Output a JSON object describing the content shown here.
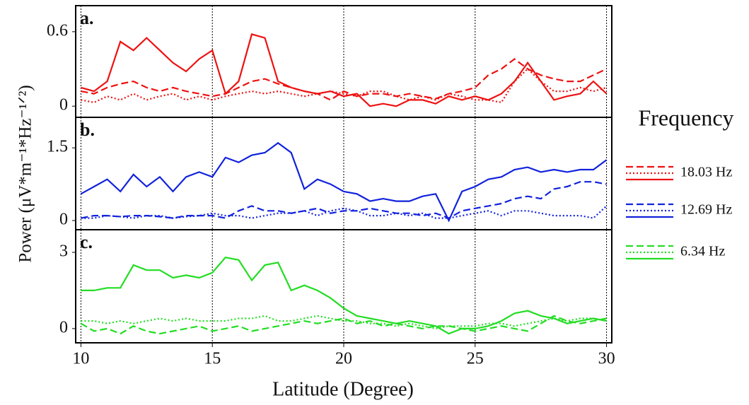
{
  "shared": {
    "ylabel": "Power (μV*m⁻¹*Hz⁻¹ᐟ²)",
    "xlabel": "Latitude (Degree)",
    "legend_title": "Frequency"
  },
  "chart_data": [
    {
      "type": "line",
      "panel_label": "a.",
      "legend_label": "18.03 Hz",
      "x": [
        10,
        10.5,
        11,
        11.5,
        12,
        12.5,
        13,
        13.5,
        14,
        14.5,
        15,
        15.5,
        16,
        16.5,
        17,
        17.5,
        18,
        18.5,
        19,
        19.5,
        20,
        20.5,
        21,
        21.5,
        22,
        22.5,
        23,
        23.5,
        24,
        24.5,
        25,
        25.5,
        26,
        26.5,
        27,
        27.5,
        28,
        28.5,
        29,
        29.5,
        30
      ],
      "xlim": [
        9.8,
        30.2
      ],
      "xticks": [
        10,
        15,
        20,
        25,
        30
      ],
      "ylim": [
        -0.09,
        0.81
      ],
      "yticks": [
        0,
        0.6
      ],
      "series": [
        {
          "dash": "dashed",
          "color": "#ee1111",
          "values": [
            0.12,
            0.1,
            0.15,
            0.18,
            0.2,
            0.15,
            0.12,
            0.15,
            0.12,
            0.1,
            0.08,
            0.1,
            0.15,
            0.2,
            0.22,
            0.18,
            0.15,
            0.12,
            0.1,
            0.05,
            0.12,
            0.08,
            0.1,
            0.1,
            0.08,
            0.1,
            0.08,
            0.06,
            0.1,
            0.12,
            0.15,
            0.25,
            0.3,
            0.38,
            0.3,
            0.25,
            0.22,
            0.2,
            0.2,
            0.25,
            0.3
          ]
        },
        {
          "dash": "dotted",
          "color": "#ee1111",
          "values": [
            0.05,
            0.03,
            0.08,
            0.05,
            0.1,
            0.05,
            0.08,
            0.1,
            0.05,
            0.08,
            0.05,
            0.08,
            0.1,
            0.12,
            0.1,
            0.12,
            0.1,
            0.08,
            0.1,
            0.12,
            0.1,
            0.08,
            0.12,
            0.12,
            0.08,
            0.05,
            0.08,
            0.05,
            0.1,
            0.08,
            0.05,
            0.05,
            0.03,
            0.2,
            0.3,
            0.2,
            0.12,
            0.12,
            0.15,
            0.12,
            0.15
          ]
        },
        {
          "dash": "solid",
          "color": "#ee1111",
          "values": [
            0.15,
            0.12,
            0.2,
            0.52,
            0.45,
            0.55,
            0.45,
            0.35,
            0.28,
            0.38,
            0.45,
            0.1,
            0.2,
            0.58,
            0.55,
            0.2,
            0.15,
            0.12,
            0.1,
            0.12,
            0.08,
            0.1,
            0.0,
            0.02,
            0.0,
            0.05,
            0.05,
            0.02,
            0.08,
            0.05,
            0.08,
            0.05,
            0.1,
            0.2,
            0.35,
            0.2,
            0.05,
            0.08,
            0.1,
            0.2,
            0.1
          ]
        }
      ]
    },
    {
      "type": "line",
      "panel_label": "b.",
      "legend_label": "12.69 Hz",
      "x": [
        10,
        10.5,
        11,
        11.5,
        12,
        12.5,
        13,
        13.5,
        14,
        14.5,
        15,
        15.5,
        16,
        16.5,
        17,
        17.5,
        18,
        18.5,
        19,
        19.5,
        20,
        20.5,
        21,
        21.5,
        22,
        22.5,
        23,
        23.5,
        24,
        24.5,
        25,
        25.5,
        26,
        26.5,
        27,
        27.5,
        28,
        28.5,
        29,
        29.5,
        30
      ],
      "xlim": [
        9.8,
        30.2
      ],
      "xticks": [
        10,
        15,
        20,
        25,
        30
      ],
      "ylim": [
        -0.19,
        2.13
      ],
      "yticks": [
        0,
        1.5
      ],
      "series": [
        {
          "dash": "dashed",
          "color": "#1122dd",
          "values": [
            0.05,
            0.1,
            0.1,
            0.08,
            0.1,
            0.1,
            0.08,
            0.05,
            0.1,
            0.1,
            0.1,
            0.05,
            0.2,
            0.3,
            0.2,
            0.2,
            0.15,
            0.2,
            0.25,
            0.15,
            0.2,
            0.2,
            0.25,
            0.2,
            0.15,
            0.15,
            0.1,
            0.15,
            0.05,
            0.2,
            0.25,
            0.3,
            0.35,
            0.45,
            0.5,
            0.45,
            0.65,
            0.7,
            0.8,
            0.8,
            0.75
          ]
        },
        {
          "dash": "dotted",
          "color": "#1122dd",
          "values": [
            0.05,
            0.05,
            0.1,
            0.08,
            0.05,
            0.1,
            0.1,
            0.05,
            0.08,
            0.1,
            0.15,
            0.1,
            0.1,
            0.05,
            0.1,
            0.15,
            0.15,
            0.2,
            0.1,
            0.2,
            0.25,
            0.2,
            0.1,
            0.1,
            0.15,
            0.1,
            0.15,
            0.05,
            0.05,
            0.1,
            0.15,
            0.2,
            0.1,
            0.2,
            0.2,
            0.15,
            0.1,
            0.1,
            0.1,
            0.05,
            0.3
          ]
        },
        {
          "dash": "solid",
          "color": "#1122dd",
          "values": [
            0.55,
            0.7,
            0.85,
            0.6,
            0.95,
            0.7,
            0.9,
            0.6,
            0.9,
            1.0,
            0.9,
            1.3,
            1.2,
            1.35,
            1.4,
            1.6,
            1.4,
            0.65,
            0.85,
            0.75,
            0.6,
            0.55,
            0.4,
            0.45,
            0.4,
            0.4,
            0.5,
            0.55,
            0.0,
            0.6,
            0.7,
            0.85,
            0.9,
            1.05,
            1.1,
            1.0,
            1.05,
            1.0,
            1.05,
            1.05,
            1.25
          ]
        }
      ]
    },
    {
      "type": "line",
      "panel_label": "c.",
      "legend_label": "6.34 Hz",
      "x": [
        10,
        10.5,
        11,
        11.5,
        12,
        12.5,
        13,
        13.5,
        14,
        14.5,
        15,
        15.5,
        16,
        16.5,
        17,
        17.5,
        18,
        18.5,
        19,
        19.5,
        20,
        20.5,
        21,
        21.5,
        22,
        22.5,
        23,
        23.5,
        24,
        24.5,
        25,
        25.5,
        26,
        26.5,
        27,
        27.5,
        28,
        28.5,
        29,
        29.5,
        30
      ],
      "xlim": [
        9.8,
        30.2
      ],
      "xticks": [
        10,
        15,
        20,
        25,
        30
      ],
      "ylim": [
        -0.56,
        3.89
      ],
      "yticks": [
        0,
        3
      ],
      "series": [
        {
          "dash": "dashed",
          "color": "#22dd22",
          "values": [
            0.2,
            -0.1,
            0.0,
            -0.2,
            0.1,
            -0.1,
            -0.2,
            -0.1,
            0.0,
            0.1,
            -0.1,
            0.0,
            0.1,
            -0.1,
            0.0,
            0.1,
            0.2,
            0.3,
            0.2,
            0.3,
            0.4,
            0.2,
            0.3,
            0.1,
            0.2,
            0.1,
            0.0,
            0.1,
            0.1,
            0.0,
            -0.1,
            0.0,
            0.1,
            0.0,
            -0.1,
            0.2,
            0.5,
            0.3,
            0.2,
            0.3,
            0.4
          ]
        },
        {
          "dash": "dotted",
          "color": "#22dd22",
          "values": [
            0.3,
            0.3,
            0.2,
            0.3,
            0.2,
            0.3,
            0.4,
            0.3,
            0.4,
            0.3,
            0.3,
            0.3,
            0.4,
            0.4,
            0.5,
            0.3,
            0.3,
            0.4,
            0.5,
            0.4,
            0.3,
            0.3,
            0.2,
            0.2,
            0.1,
            0.2,
            0.1,
            0.0,
            0.1,
            0.1,
            0.1,
            0.2,
            0.2,
            0.1,
            0.2,
            0.3,
            0.4,
            0.3,
            0.4,
            0.4,
            0.3
          ]
        },
        {
          "dash": "solid",
          "color": "#22dd22",
          "values": [
            1.5,
            1.5,
            1.6,
            1.6,
            2.5,
            2.3,
            2.3,
            2.0,
            2.1,
            2.0,
            2.2,
            2.8,
            2.7,
            1.9,
            2.5,
            2.6,
            1.5,
            1.7,
            1.5,
            1.2,
            0.8,
            0.5,
            0.4,
            0.3,
            0.2,
            0.3,
            0.2,
            0.1,
            -0.2,
            0.0,
            0.0,
            0.1,
            0.3,
            0.6,
            0.7,
            0.5,
            0.4,
            0.2,
            0.3,
            0.4,
            0.3
          ]
        }
      ]
    }
  ]
}
